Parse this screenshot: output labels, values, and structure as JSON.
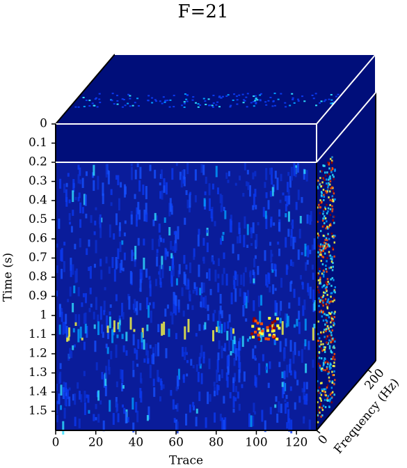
{
  "chart_data": {
    "type": "cube",
    "title": "F=21",
    "xlabel": "Trace",
    "ylabel": "Time (s)",
    "zlabel": "Frequency (Hz)",
    "xlim": [
      0,
      130
    ],
    "xticks": [
      0,
      20,
      40,
      60,
      80,
      100,
      120
    ],
    "ylim": [
      0,
      1.6
    ],
    "yticks": [
      0,
      0.1,
      0.2,
      0.3,
      0.4,
      0.5,
      0.6,
      0.7,
      0.8,
      0.9,
      1,
      1.1,
      1.2,
      1.3,
      1.4,
      1.5
    ],
    "zlim": [
      0,
      230
    ],
    "zticks": [
      0,
      200
    ],
    "slice_time": 0.2
  }
}
